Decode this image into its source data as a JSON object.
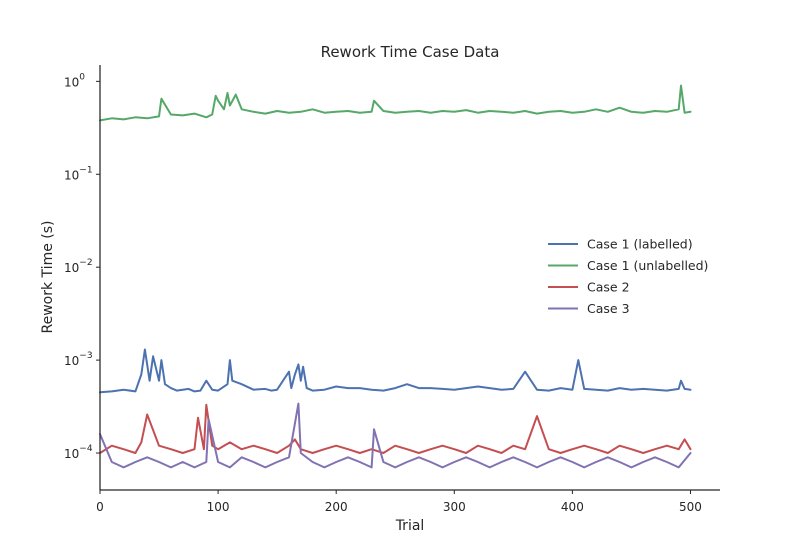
{
  "chart_data": {
    "type": "line",
    "title": "Rework Time Case Data",
    "xlabel": "Trial",
    "ylabel": "Rework Time (s)",
    "xlim": [
      0,
      525
    ],
    "ylim": [
      4e-05,
      1.5
    ],
    "y_scale": "log",
    "x_ticks": [
      0,
      100,
      200,
      300,
      400,
      500
    ],
    "y_ticks": [
      {
        "value": 0.0001,
        "base": "10",
        "exp": "−4"
      },
      {
        "value": 0.001,
        "base": "10",
        "exp": "−3"
      },
      {
        "value": 0.01,
        "base": "10",
        "exp": "−2"
      },
      {
        "value": 0.1,
        "base": "10",
        "exp": "−1"
      },
      {
        "value": 1,
        "base": "10",
        "exp": "0"
      }
    ],
    "grid": false,
    "legend_position": "center-right",
    "series": [
      {
        "name": "Case 1 (labelled)",
        "color": "#4c72b0",
        "x": [
          0,
          10,
          20,
          30,
          35,
          38,
          42,
          45,
          50,
          52,
          55,
          60,
          65,
          70,
          75,
          80,
          85,
          90,
          95,
          100,
          108,
          110,
          112,
          120,
          130,
          140,
          145,
          150,
          155,
          160,
          162,
          165,
          168,
          170,
          172,
          175,
          180,
          190,
          200,
          210,
          220,
          230,
          240,
          250,
          260,
          270,
          280,
          290,
          300,
          310,
          320,
          330,
          340,
          350,
          360,
          370,
          380,
          390,
          400,
          405,
          410,
          420,
          430,
          440,
          450,
          460,
          470,
          480,
          490,
          492,
          495,
          500
        ],
        "values": [
          0.00045,
          0.00046,
          0.00048,
          0.00046,
          0.0007,
          0.0013,
          0.0006,
          0.0011,
          0.0006,
          0.001,
          0.00055,
          0.0005,
          0.00047,
          0.00048,
          0.00049,
          0.00046,
          0.00047,
          0.0006,
          0.00048,
          0.00047,
          0.00055,
          0.001,
          0.0006,
          0.00055,
          0.00048,
          0.00049,
          0.00047,
          0.00048,
          0.0006,
          0.00075,
          0.0005,
          0.0007,
          0.0009,
          0.0006,
          0.00085,
          0.0005,
          0.00047,
          0.00048,
          0.00052,
          0.0005,
          0.0005,
          0.00048,
          0.00047,
          0.0005,
          0.00055,
          0.0005,
          0.0005,
          0.00049,
          0.00048,
          0.0005,
          0.00052,
          0.0005,
          0.00048,
          0.00049,
          0.00075,
          0.00048,
          0.00047,
          0.0005,
          0.00048,
          0.001,
          0.00049,
          0.00048,
          0.00047,
          0.0005,
          0.00048,
          0.00049,
          0.00048,
          0.00047,
          0.00049,
          0.0006,
          0.00049,
          0.00048
        ]
      },
      {
        "name": "Case 1 (unlabelled)",
        "color": "#55a868",
        "x": [
          0,
          10,
          20,
          30,
          40,
          50,
          52,
          60,
          70,
          80,
          90,
          95,
          98,
          100,
          105,
          108,
          110,
          115,
          120,
          130,
          140,
          150,
          160,
          170,
          180,
          190,
          200,
          210,
          220,
          230,
          232,
          240,
          250,
          260,
          270,
          280,
          290,
          300,
          310,
          320,
          330,
          340,
          350,
          360,
          370,
          380,
          390,
          400,
          410,
          420,
          430,
          440,
          450,
          460,
          470,
          480,
          490,
          492,
          495,
          500
        ],
        "values": [
          0.38,
          0.4,
          0.39,
          0.41,
          0.4,
          0.42,
          0.65,
          0.44,
          0.43,
          0.45,
          0.41,
          0.44,
          0.7,
          0.62,
          0.5,
          0.75,
          0.55,
          0.72,
          0.5,
          0.47,
          0.45,
          0.48,
          0.46,
          0.47,
          0.5,
          0.46,
          0.47,
          0.48,
          0.46,
          0.47,
          0.62,
          0.48,
          0.46,
          0.47,
          0.48,
          0.46,
          0.48,
          0.47,
          0.49,
          0.46,
          0.48,
          0.47,
          0.46,
          0.48,
          0.45,
          0.47,
          0.48,
          0.46,
          0.47,
          0.5,
          0.47,
          0.52,
          0.47,
          0.46,
          0.48,
          0.47,
          0.5,
          0.9,
          0.46,
          0.47
        ]
      },
      {
        "name": "Case 2",
        "color": "#c44e52",
        "x": [
          0,
          10,
          20,
          30,
          35,
          40,
          50,
          60,
          70,
          80,
          83,
          88,
          90,
          95,
          100,
          110,
          120,
          130,
          140,
          150,
          160,
          165,
          170,
          180,
          190,
          200,
          210,
          220,
          230,
          240,
          250,
          260,
          270,
          280,
          290,
          300,
          310,
          320,
          330,
          340,
          350,
          360,
          370,
          380,
          390,
          400,
          410,
          420,
          430,
          440,
          450,
          460,
          470,
          480,
          490,
          495,
          500
        ],
        "values": [
          0.0001,
          0.00012,
          0.00011,
          0.0001,
          0.00013,
          0.00026,
          0.00012,
          0.00011,
          0.0001,
          0.00011,
          0.00024,
          0.00011,
          0.00033,
          0.00012,
          0.00011,
          0.00013,
          0.00011,
          0.00012,
          0.00011,
          0.0001,
          0.00012,
          0.00014,
          0.00011,
          0.0001,
          0.00011,
          0.00012,
          0.00011,
          0.0001,
          0.00011,
          0.0001,
          0.00012,
          0.00011,
          0.0001,
          0.00011,
          0.00012,
          0.00011,
          0.0001,
          0.00012,
          0.00011,
          0.0001,
          0.00012,
          0.00011,
          0.00025,
          0.00011,
          0.0001,
          0.00011,
          0.00012,
          0.00011,
          0.0001,
          0.00012,
          0.00011,
          0.0001,
          0.00011,
          0.00012,
          0.00011,
          0.00014,
          0.00011
        ]
      },
      {
        "name": "Case 3",
        "color": "#8172b2",
        "x": [
          0,
          10,
          20,
          30,
          40,
          50,
          60,
          70,
          80,
          90,
          92,
          100,
          110,
          120,
          130,
          140,
          150,
          160,
          168,
          170,
          180,
          190,
          200,
          210,
          220,
          230,
          232,
          240,
          250,
          260,
          270,
          280,
          290,
          300,
          310,
          320,
          330,
          340,
          350,
          360,
          370,
          380,
          390,
          400,
          410,
          420,
          430,
          440,
          450,
          460,
          470,
          480,
          490,
          500
        ],
        "values": [
          0.00016,
          8e-05,
          7e-05,
          8e-05,
          9e-05,
          8e-05,
          7e-05,
          8e-05,
          7e-05,
          8e-05,
          0.00023,
          8e-05,
          7e-05,
          9e-05,
          8e-05,
          7e-05,
          8e-05,
          9e-05,
          0.00034,
          0.0001,
          8e-05,
          7e-05,
          8e-05,
          9e-05,
          8e-05,
          7e-05,
          0.00018,
          8e-05,
          7e-05,
          8e-05,
          9e-05,
          8e-05,
          7e-05,
          8e-05,
          9e-05,
          8e-05,
          7e-05,
          8e-05,
          9e-05,
          8e-05,
          7e-05,
          8e-05,
          9e-05,
          8e-05,
          7e-05,
          8e-05,
          9e-05,
          8e-05,
          7e-05,
          8e-05,
          9e-05,
          8e-05,
          7e-05,
          0.0001
        ]
      }
    ]
  }
}
